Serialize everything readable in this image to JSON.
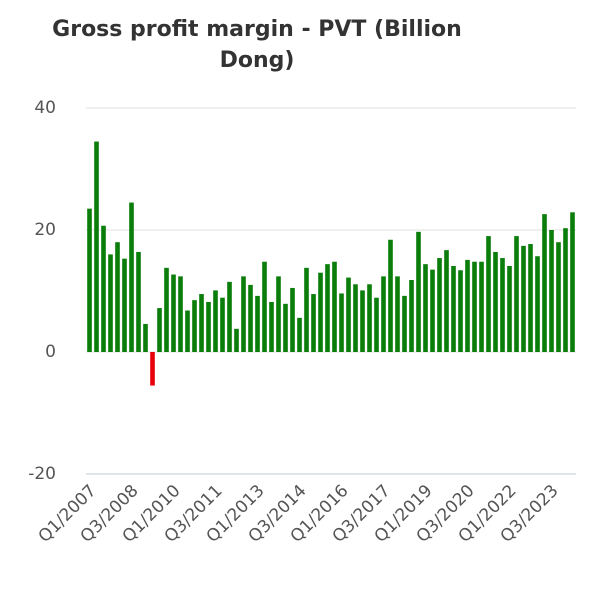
{
  "chart_data": {
    "type": "bar",
    "title": "Gross profit margin - PVT (Billion Dong)",
    "categories": [
      "Q1/2007",
      null,
      null,
      null,
      null,
      null,
      "Q3/2008",
      null,
      null,
      null,
      null,
      null,
      "Q1/2010",
      null,
      null,
      null,
      null,
      null,
      "Q3/2011",
      null,
      null,
      null,
      null,
      null,
      "Q1/2013",
      null,
      null,
      null,
      null,
      null,
      "Q3/2014",
      null,
      null,
      null,
      null,
      null,
      "Q1/2016",
      null,
      null,
      null,
      null,
      null,
      "Q3/2017",
      null,
      null,
      null,
      null,
      null,
      "Q1/2019",
      null,
      null,
      null,
      null,
      null,
      "Q3/2020",
      null,
      null,
      null,
      null,
      null,
      "Q1/2022",
      null,
      null,
      null,
      null,
      null,
      "Q3/2023",
      null,
      null,
      null
    ],
    "values": [
      23.5,
      34.5,
      20.7,
      16,
      18,
      15.3,
      24.5,
      16.4,
      4.6,
      -5.5,
      7.2,
      13.8,
      12.7,
      12.4,
      6.8,
      8.5,
      9.5,
      8.2,
      10.1,
      8.9,
      11.5,
      3.8,
      12.4,
      11,
      9.2,
      14.8,
      8.2,
      12.4,
      7.9,
      10.5,
      5.6,
      13.8,
      9.5,
      13,
      14.4,
      14.8,
      9.6,
      12.2,
      11.1,
      10.1,
      11.1,
      8.9,
      12.4,
      18.4,
      12.4,
      9.2,
      11.8,
      19.7,
      14.4,
      13.5,
      15.4,
      16.7,
      14.1,
      13.4,
      15.1,
      14.8,
      14.8,
      19,
      16.4,
      15.4,
      14.1,
      19,
      17.4,
      17.7,
      15.7,
      22.6,
      20,
      18,
      20.3,
      22.9
    ],
    "color": "#0b7d0b",
    "negative_color": "#e8000b",
    "ylim": [
      -20,
      40
    ],
    "yticks": [
      -20,
      0,
      20,
      40
    ],
    "grid": true
  }
}
